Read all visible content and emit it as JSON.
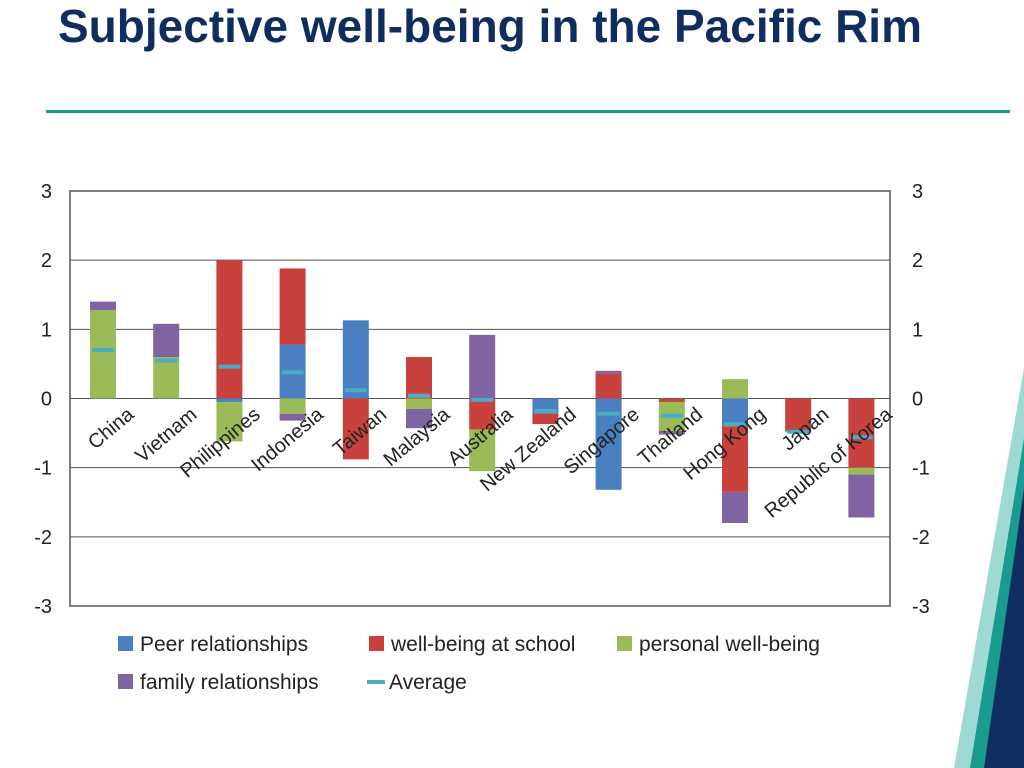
{
  "slide": {
    "title": "Subjective well-being in the Pacific Rim"
  },
  "chart_data": {
    "type": "bar",
    "stacked": true,
    "categories": [
      "China",
      "Vietnam",
      "Philippines",
      "Indonesia",
      "Taiwan",
      "Malaysia",
      "Australia",
      "New Zealand",
      "Singapore",
      "Thailand",
      "Hong Kong",
      "Japan",
      "Republic of Korea"
    ],
    "series": [
      {
        "name": "Peer relationships",
        "color": "#4a7fc1",
        "values": [
          0,
          0,
          -0.05,
          0.78,
          1.13,
          0,
          0,
          -0.22,
          -1.32,
          0,
          -0.4,
          0,
          0
        ]
      },
      {
        "name": "well-being at school",
        "color": "#c9413d",
        "values": [
          0,
          0,
          2.0,
          1.1,
          -0.88,
          0.6,
          -0.45,
          -0.15,
          0.36,
          -0.05,
          -0.95,
          -0.47,
          -1.0
        ]
      },
      {
        "name": "personal well-being",
        "color": "#9bbb59",
        "values": [
          1.28,
          0.6,
          -0.57,
          -0.22,
          0,
          -0.15,
          -0.6,
          0,
          0,
          -0.42,
          0.28,
          -0.02,
          -0.1
        ]
      },
      {
        "name": "family relationships",
        "color": "#8064a2",
        "values": [
          0.12,
          0.48,
          0,
          -0.1,
          0,
          -0.28,
          0.92,
          0,
          0.04,
          -0.05,
          -0.45,
          0,
          -0.62
        ]
      }
    ],
    "average": {
      "name": "Average",
      "color": "#4bacc6",
      "values": [
        0.7,
        0.55,
        0.46,
        0.38,
        0.12,
        0.04,
        -0.02,
        -0.18,
        -0.22,
        -0.25,
        -0.37,
        -0.48,
        -0.56
      ]
    },
    "ylim": [
      -3,
      3
    ],
    "yticks": [
      3,
      2,
      1,
      0,
      -1,
      -2,
      -3
    ],
    "grid": true,
    "legend_position": "bottom"
  }
}
